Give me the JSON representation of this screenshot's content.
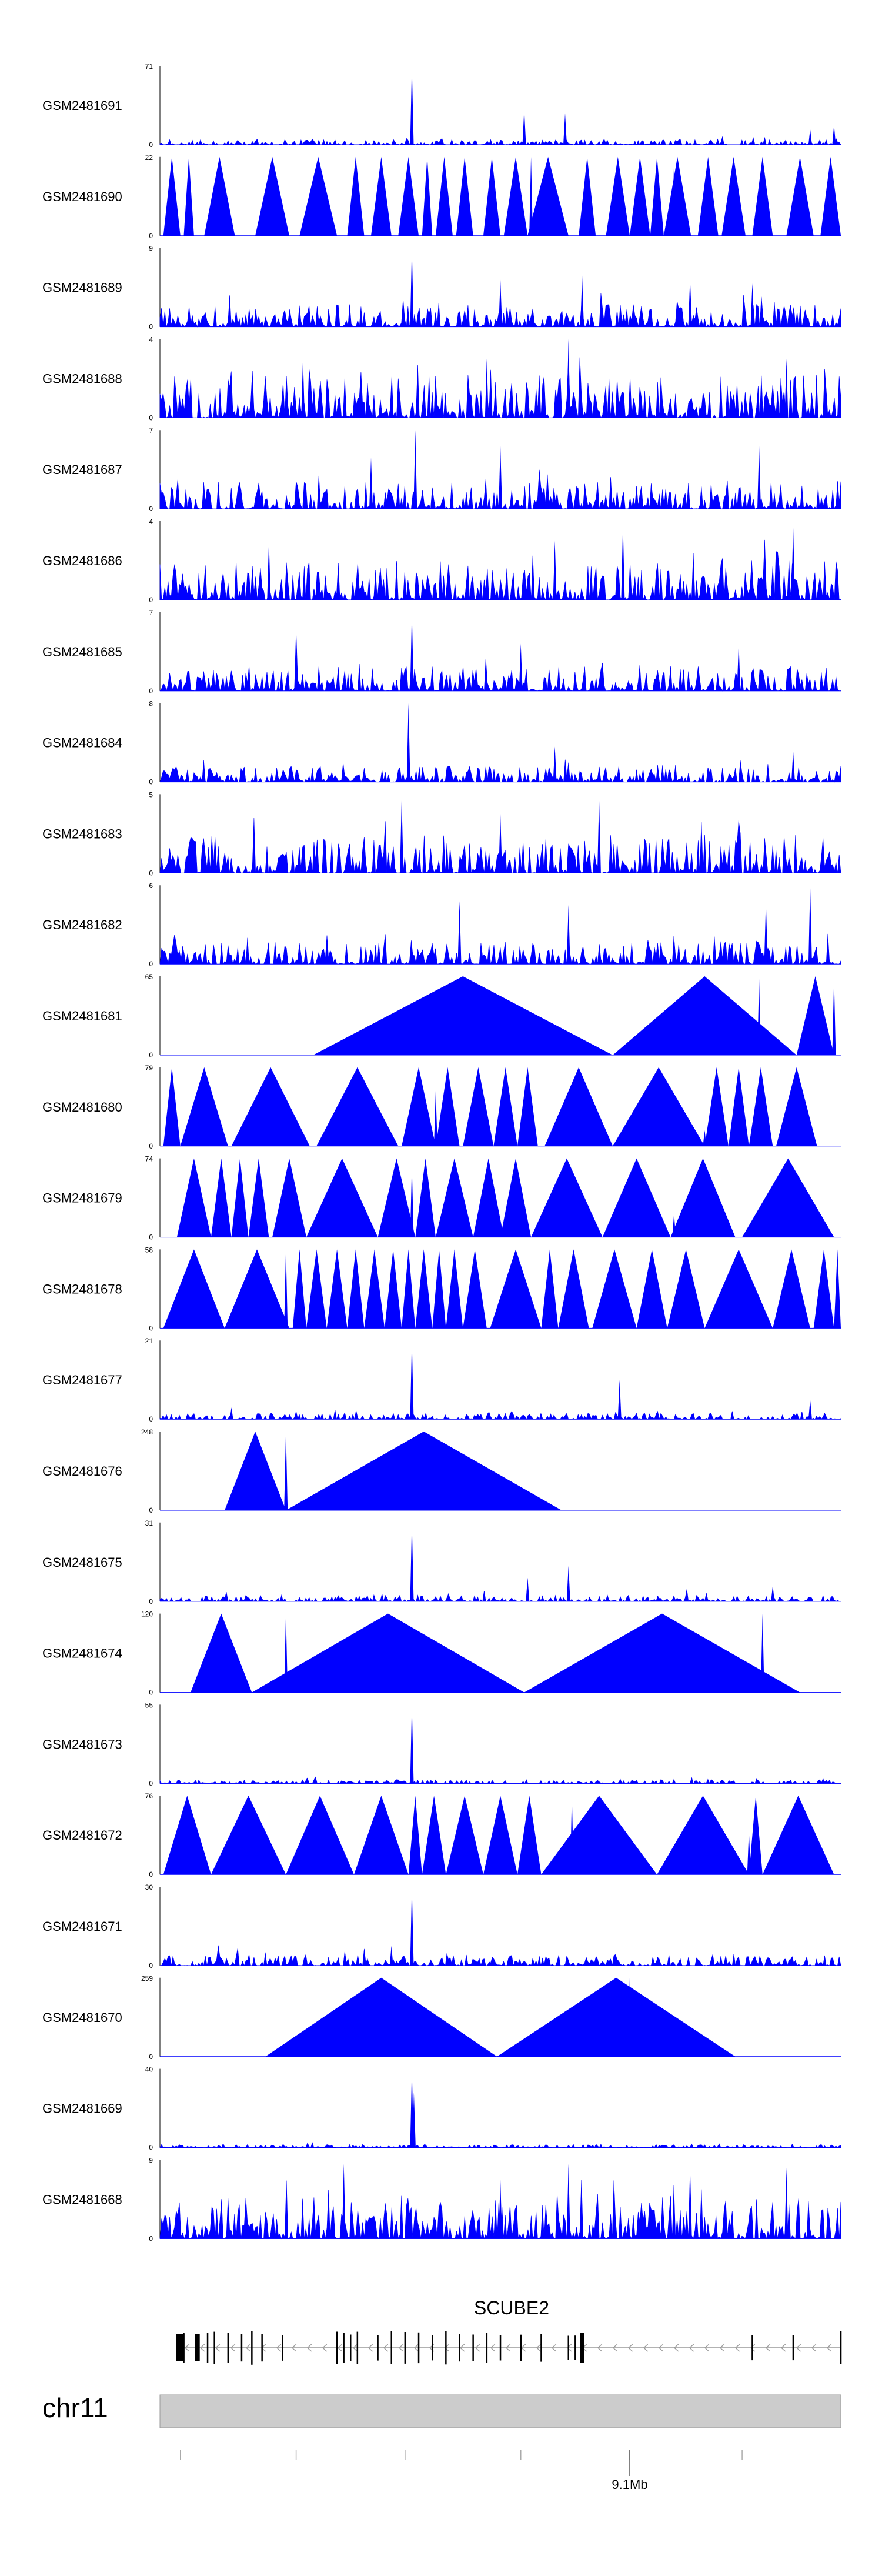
{
  "chart_data": {
    "type": "area",
    "title": "",
    "xlabel": "",
    "ylabel": "",
    "color": "#0000ff",
    "tracks": [
      {
        "name": "GSM2481691",
        "ymax": "71",
        "ymax_value": 71,
        "style": "noise",
        "base": 0.07,
        "peaks": [
          [
            0.37,
            1.0
          ],
          [
            0.535,
            0.45
          ],
          [
            0.595,
            0.4
          ],
          [
            0.955,
            0.2
          ],
          [
            0.99,
            0.25
          ]
        ]
      },
      {
        "name": "GSM2481690",
        "ymax": "22",
        "ymax_value": 22,
        "style": "triangles",
        "tri": [
          [
            0.005,
            0.03
          ],
          [
            0.035,
            0.05
          ],
          [
            0.065,
            0.11
          ],
          [
            0.14,
            0.19
          ],
          [
            0.205,
            0.26
          ],
          [
            0.275,
            0.3
          ],
          [
            0.31,
            0.34
          ],
          [
            0.35,
            0.38
          ],
          [
            0.385,
            0.4
          ],
          [
            0.405,
            0.43
          ],
          [
            0.435,
            0.46
          ],
          [
            0.475,
            0.5
          ],
          [
            0.505,
            0.54
          ],
          [
            0.54,
            0.6
          ],
          [
            0.615,
            0.64
          ],
          [
            0.655,
            0.69
          ],
          [
            0.69,
            0.72
          ],
          [
            0.72,
            0.74
          ],
          [
            0.74,
            0.78
          ],
          [
            0.79,
            0.82
          ],
          [
            0.825,
            0.86
          ],
          [
            0.87,
            0.9
          ],
          [
            0.92,
            0.96
          ],
          [
            0.97,
            1.0
          ]
        ],
        "peaks": [
          [
            0.545,
            1.0
          ],
          [
            0.755,
            0.95
          ],
          [
            0.985,
            0.8
          ]
        ]
      },
      {
        "name": "GSM2481689",
        "ymax": "9",
        "ymax_value": 9,
        "style": "noise",
        "base": 0.28,
        "peaks": [
          [
            0.37,
            1.0
          ],
          [
            0.5,
            0.6
          ],
          [
            0.62,
            0.65
          ],
          [
            0.87,
            0.55
          ]
        ]
      },
      {
        "name": "GSM2481688",
        "ymax": "4",
        "ymax_value": 4,
        "style": "noise",
        "base": 0.55,
        "peaks": [
          [
            0.6,
            1.0
          ],
          [
            0.21,
            0.75
          ],
          [
            0.48,
            0.75
          ],
          [
            0.92,
            0.75
          ]
        ]
      },
      {
        "name": "GSM2481687",
        "ymax": "7",
        "ymax_value": 7,
        "style": "noise",
        "base": 0.35,
        "peaks": [
          [
            0.375,
            1.0
          ],
          [
            0.5,
            0.8
          ],
          [
            0.88,
            0.8
          ],
          [
            0.31,
            0.65
          ]
        ]
      },
      {
        "name": "GSM2481686",
        "ymax": "4",
        "ymax_value": 4,
        "style": "noise",
        "base": 0.5,
        "peaks": [
          [
            0.68,
            0.95
          ],
          [
            0.93,
            0.95
          ],
          [
            0.58,
            0.75
          ],
          [
            0.16,
            0.75
          ]
        ]
      },
      {
        "name": "GSM2481685",
        "ymax": "7",
        "ymax_value": 7,
        "style": "noise",
        "base": 0.32,
        "peaks": [
          [
            0.37,
            1.0
          ],
          [
            0.53,
            0.6
          ],
          [
            0.85,
            0.6
          ]
        ]
      },
      {
        "name": "GSM2481684",
        "ymax": "8",
        "ymax_value": 8,
        "style": "noise",
        "base": 0.2,
        "peaks": [
          [
            0.365,
            1.0
          ],
          [
            0.58,
            0.45
          ],
          [
            0.93,
            0.4
          ]
        ]
      },
      {
        "name": "GSM2481683",
        "ymax": "5",
        "ymax_value": 5,
        "style": "noise",
        "base": 0.48,
        "peaks": [
          [
            0.355,
            0.95
          ],
          [
            0.645,
            0.95
          ],
          [
            0.5,
            0.75
          ],
          [
            0.85,
            0.75
          ]
        ]
      },
      {
        "name": "GSM2481682",
        "ymax": "6",
        "ymax_value": 6,
        "style": "noise",
        "base": 0.3,
        "peaks": [
          [
            0.955,
            1.0
          ],
          [
            0.44,
            0.8
          ],
          [
            0.6,
            0.75
          ],
          [
            0.89,
            0.8
          ]
        ]
      },
      {
        "name": "GSM2481681",
        "ymax": "65",
        "ymax_value": 65,
        "style": "triangles",
        "tri": [
          [
            0.225,
            0.665
          ],
          [
            0.665,
            0.935
          ],
          [
            0.935,
            0.99
          ]
        ],
        "peaks": [
          [
            0.445,
            1.0
          ],
          [
            0.88,
            0.97
          ],
          [
            0.99,
            0.97
          ]
        ]
      },
      {
        "name": "GSM2481680",
        "ymax": "79",
        "ymax_value": 79,
        "style": "triangles",
        "tri": [
          [
            0.005,
            0.03
          ],
          [
            0.03,
            0.1
          ],
          [
            0.105,
            0.22
          ],
          [
            0.23,
            0.35
          ],
          [
            0.355,
            0.405
          ],
          [
            0.405,
            0.44
          ],
          [
            0.445,
            0.49
          ],
          [
            0.49,
            0.525
          ],
          [
            0.525,
            0.555
          ],
          [
            0.565,
            0.665
          ],
          [
            0.665,
            0.8
          ],
          [
            0.8,
            0.835
          ],
          [
            0.835,
            0.865
          ],
          [
            0.865,
            0.9
          ],
          [
            0.905,
            0.965
          ]
        ],
        "peaks": [
          [
            0.405,
            0.45
          ],
          [
            0.405,
            0.7
          ],
          [
            0.8,
            0.2
          ]
        ]
      },
      {
        "name": "GSM2481679",
        "ymax": "74",
        "ymax_value": 74,
        "style": "triangles",
        "tri": [
          [
            0.025,
            0.075
          ],
          [
            0.075,
            0.105
          ],
          [
            0.105,
            0.13
          ],
          [
            0.13,
            0.16
          ],
          [
            0.165,
            0.215
          ],
          [
            0.215,
            0.32
          ],
          [
            0.32,
            0.375
          ],
          [
            0.375,
            0.405
          ],
          [
            0.405,
            0.46
          ],
          [
            0.46,
            0.505
          ],
          [
            0.5,
            0.545
          ],
          [
            0.545,
            0.65
          ],
          [
            0.65,
            0.75
          ],
          [
            0.75,
            0.845
          ],
          [
            0.855,
            0.99
          ]
        ],
        "peaks": [
          [
            0.37,
            0.9
          ],
          [
            0.37,
            0.4
          ],
          [
            0.755,
            0.3
          ],
          [
            0.955,
            0.3
          ]
        ]
      },
      {
        "name": "GSM2481678",
        "ymax": "58",
        "ymax_value": 58,
        "style": "triangles",
        "tri": [
          [
            0.005,
            0.095
          ],
          [
            0.095,
            0.19
          ],
          [
            0.195,
            0.215
          ],
          [
            0.215,
            0.245
          ],
          [
            0.245,
            0.275
          ],
          [
            0.275,
            0.3
          ],
          [
            0.3,
            0.33
          ],
          [
            0.33,
            0.355
          ],
          [
            0.355,
            0.375
          ],
          [
            0.375,
            0.4
          ],
          [
            0.4,
            0.42
          ],
          [
            0.42,
            0.445
          ],
          [
            0.445,
            0.48
          ],
          [
            0.485,
            0.56
          ],
          [
            0.56,
            0.585
          ],
          [
            0.585,
            0.63
          ],
          [
            0.635,
            0.7
          ],
          [
            0.7,
            0.745
          ],
          [
            0.745,
            0.8
          ],
          [
            0.8,
            0.9
          ],
          [
            0.9,
            0.955
          ],
          [
            0.96,
            0.99
          ],
          [
            0.99,
            1.0
          ]
        ],
        "peaks": [
          [
            0.185,
            1.0
          ],
          [
            0.185,
            0.45
          ]
        ]
      },
      {
        "name": "GSM2481677",
        "ymax": "21",
        "ymax_value": 21,
        "style": "noise",
        "base": 0.08,
        "peaks": [
          [
            0.37,
            1.0
          ],
          [
            0.675,
            0.5
          ],
          [
            0.955,
            0.25
          ],
          [
            0.105,
            0.15
          ]
        ]
      },
      {
        "name": "GSM2481676",
        "ymax": "248",
        "ymax_value": 248,
        "style": "triangles",
        "tri": [
          [
            0.095,
            0.185
          ],
          [
            0.185,
            0.59
          ]
        ],
        "peaks": [
          [
            0.185,
            1.0
          ],
          [
            0.185,
            0.45
          ]
        ]
      },
      {
        "name": "GSM2481675",
        "ymax": "31",
        "ymax_value": 31,
        "style": "noise",
        "base": 0.08,
        "peaks": [
          [
            0.37,
            1.0
          ],
          [
            0.6,
            0.45
          ],
          [
            0.54,
            0.3
          ],
          [
            0.9,
            0.2
          ]
        ]
      },
      {
        "name": "GSM2481674",
        "ymax": "120",
        "ymax_value": 120,
        "style": "triangles",
        "tri": [
          [
            0.045,
            0.135
          ],
          [
            0.135,
            0.535
          ],
          [
            0.535,
            0.94
          ]
        ],
        "peaks": [
          [
            0.09,
            1.0
          ],
          [
            0.185,
            1.0
          ],
          [
            0.885,
            1.0
          ]
        ]
      },
      {
        "name": "GSM2481673",
        "ymax": "55",
        "ymax_value": 55,
        "style": "noise",
        "base": 0.05,
        "peaks": [
          [
            0.37,
            1.0
          ]
        ]
      },
      {
        "name": "GSM2481672",
        "ymax": "76",
        "ymax_value": 76,
        "style": "triangles",
        "tri": [
          [
            0.005,
            0.075
          ],
          [
            0.075,
            0.185
          ],
          [
            0.185,
            0.285
          ],
          [
            0.285,
            0.365
          ],
          [
            0.365,
            0.385
          ],
          [
            0.385,
            0.42
          ],
          [
            0.42,
            0.475
          ],
          [
            0.475,
            0.525
          ],
          [
            0.525,
            0.56
          ],
          [
            0.56,
            0.73
          ],
          [
            0.73,
            0.865
          ],
          [
            0.865,
            0.885
          ],
          [
            0.885,
            0.99
          ]
        ],
        "peaks": [
          [
            0.605,
            1.0
          ],
          [
            0.405,
            0.55
          ],
          [
            0.865,
            0.55
          ]
        ]
      },
      {
        "name": "GSM2481671",
        "ymax": "30",
        "ymax_value": 30,
        "style": "noise",
        "base": 0.14,
        "peaks": [
          [
            0.37,
            1.0
          ],
          [
            0.34,
            0.25
          ]
        ]
      },
      {
        "name": "GSM2481670",
        "ymax": "259",
        "ymax_value": 259,
        "style": "triangles",
        "tri": [
          [
            0.155,
            0.495
          ],
          [
            0.495,
            0.845
          ]
        ],
        "peaks": [
          [
            0.3,
            0.5
          ],
          [
            0.69,
            0.55
          ],
          [
            0.69,
            1.0
          ]
        ]
      },
      {
        "name": "GSM2481669",
        "ymax": "40",
        "ymax_value": 40,
        "style": "noise",
        "base": 0.04,
        "peaks": [
          [
            0.37,
            1.0
          ],
          [
            0.373,
            0.7
          ]
        ]
      },
      {
        "name": "GSM2481668",
        "ymax": "9",
        "ymax_value": 9,
        "style": "noise",
        "base": 0.55,
        "peaks": [
          [
            0.27,
            0.95
          ],
          [
            0.6,
            0.95
          ],
          [
            0.92,
            0.9
          ],
          [
            0.5,
            0.75
          ]
        ]
      }
    ],
    "gene": {
      "name": "SCUBE2",
      "strand": "-",
      "start": 0.03,
      "end": 1.0
    },
    "chromosome": {
      "name": "chr11",
      "axis_tick_label": "9.1Mb",
      "axis_tick_position": 0.69,
      "minor_ticks": [
        0.03,
        0.2,
        0.36,
        0.53,
        0.69,
        0.855
      ]
    }
  }
}
